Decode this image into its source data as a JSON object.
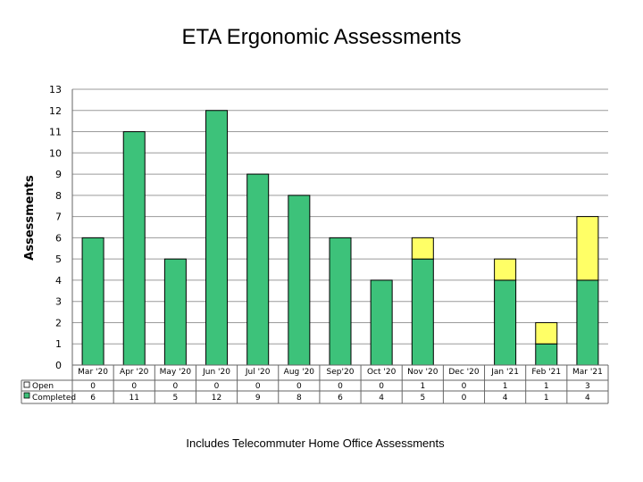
{
  "chart_data": {
    "type": "bar",
    "stacked": true,
    "title": "ETA Ergonomic Assessments",
    "ylabel": "Assessments",
    "xlabel": "",
    "ylim": [
      0,
      13
    ],
    "yticks": [
      0,
      1,
      2,
      3,
      4,
      5,
      6,
      7,
      8,
      9,
      10,
      11,
      12,
      13
    ],
    "grid": true,
    "categories": [
      "Mar '20",
      "Apr '20",
      "May '20",
      "Jun '20",
      "Jul '20",
      "Aug '20",
      "Sep'20",
      "Oct '20",
      "Nov '20",
      "Dec '20",
      "Jan '21",
      "Feb '21",
      "Mar '21"
    ],
    "series": [
      {
        "name": "Completed",
        "color": "#3dc27a",
        "values": [
          6,
          11,
          5,
          12,
          9,
          8,
          6,
          4,
          5,
          0,
          4,
          1,
          4
        ]
      },
      {
        "name": "Open",
        "color": "#ffff66",
        "values": [
          0,
          0,
          0,
          0,
          0,
          0,
          0,
          0,
          1,
          0,
          1,
          1,
          3
        ]
      }
    ],
    "legend": "data-table-left",
    "footnote": "Includes Telecommuter Home Office Assessments"
  }
}
